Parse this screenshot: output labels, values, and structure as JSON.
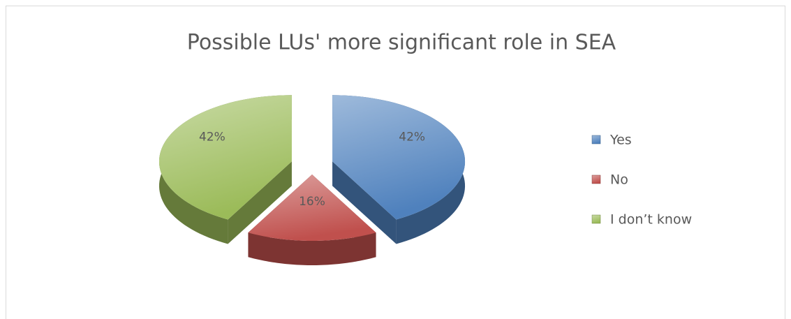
{
  "chart_data": {
    "type": "pie",
    "title": "Possible LUs' more significant role in SEA",
    "categories": [
      "Yes",
      "No",
      "I don’t know"
    ],
    "values": [
      42,
      16,
      42
    ],
    "value_labels": [
      "42%",
      "16%",
      "42%"
    ],
    "colors": [
      "#4f81bd",
      "#c0504d",
      "#9bbb59"
    ],
    "legend": "right"
  }
}
